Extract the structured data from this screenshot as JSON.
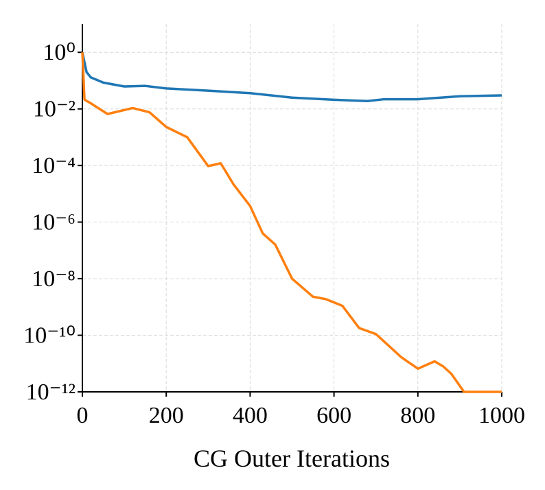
{
  "chart_data": {
    "type": "line",
    "x_label": "CG Outer Iterations",
    "log_y": true,
    "grid": true,
    "xlim": [
      0,
      1000
    ],
    "xticks": [
      0,
      200,
      400,
      600,
      800,
      1000
    ],
    "ylim": [
      1e-12,
      10
    ],
    "yticks": [
      {
        "value": 1,
        "label": "10⁰"
      },
      {
        "value": 0.01,
        "label": "10⁻²"
      },
      {
        "value": 0.0001,
        "label": "10⁻⁴"
      },
      {
        "value": 1e-06,
        "label": "10⁻⁶"
      },
      {
        "value": 1e-08,
        "label": "10⁻⁸"
      },
      {
        "value": 1e-10,
        "label": "10⁻¹⁰"
      },
      {
        "value": 1e-12,
        "label": "10⁻¹²"
      }
    ],
    "series": [
      {
        "color": "#1f77b4",
        "x": [
          0,
          10,
          20,
          50,
          100,
          150,
          200,
          300,
          400,
          500,
          600,
          680,
          720,
          800,
          900,
          1000
        ],
        "values": [
          1,
          0.2,
          0.13,
          0.085,
          0.062,
          0.065,
          0.053,
          0.044,
          0.036,
          0.025,
          0.021,
          0.019,
          0.022,
          0.022,
          0.028,
          0.03
        ]
      },
      {
        "color": "#ff7f0e",
        "x": [
          0,
          5,
          20,
          60,
          120,
          160,
          200,
          250,
          300,
          330,
          360,
          400,
          430,
          460,
          500,
          550,
          580,
          620,
          660,
          700,
          760,
          800,
          840,
          860,
          880,
          910,
          1000
        ],
        "values": [
          1,
          0.0214,
          0.0158,
          0.0066,
          0.0107,
          0.0076,
          0.0023,
          0.001,
          9.5e-05,
          0.00012,
          2.2e-05,
          3.7e-06,
          4e-07,
          1.6e-07,
          1e-08,
          2.3e-09,
          1.9e-09,
          1.1e-09,
          1.8e-10,
          1.1e-10,
          1.7e-11,
          6.6e-12,
          1.2e-11,
          8e-12,
          4.3e-12,
          1e-12,
          1e-12
        ]
      }
    ]
  }
}
